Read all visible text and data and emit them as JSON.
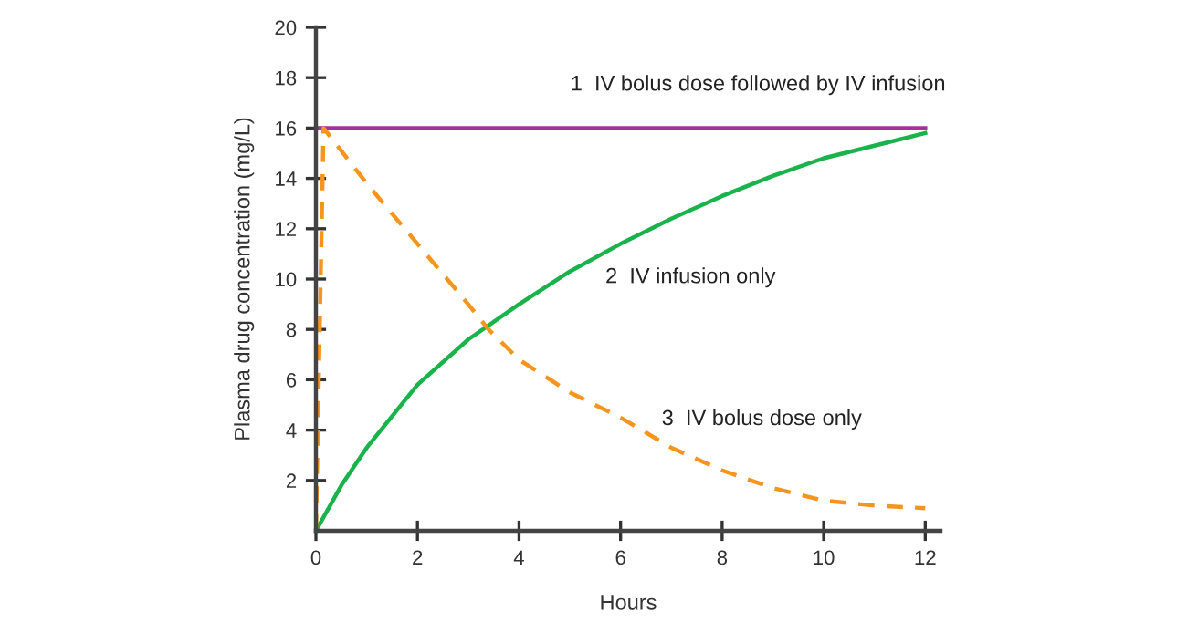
{
  "chart_data": {
    "type": "line",
    "xlabel": "Hours",
    "ylabel": "Plasma drug concentration (mg/L)",
    "xlim": [
      0,
      12.3
    ],
    "ylim": [
      0,
      20
    ],
    "xticks": [
      0,
      2,
      4,
      6,
      8,
      10,
      12
    ],
    "yticks": [
      2,
      4,
      6,
      8,
      10,
      12,
      14,
      16,
      18,
      20
    ],
    "grid": false,
    "legend": false,
    "marker": "none",
    "series": [
      {
        "name": "1  IV bolus dose followed by IV infusion",
        "color": "#a3319f",
        "line_style": "solid",
        "x": [
          0,
          12
        ],
        "values": [
          16,
          16
        ]
      },
      {
        "name": "2  IV infusion only",
        "color": "#1ab24b",
        "line_style": "solid",
        "x": [
          0,
          0.5,
          1,
          2,
          3,
          4,
          5,
          6,
          7,
          8,
          9,
          10,
          11,
          12
        ],
        "values": [
          0,
          1.8,
          3.3,
          5.8,
          7.6,
          9.0,
          10.3,
          11.4,
          12.4,
          13.3,
          14.1,
          14.8,
          15.3,
          15.8
        ]
      },
      {
        "name": "3  IV bolus dose only",
        "color": "#f7941d",
        "line_style": "dashed",
        "x": [
          0,
          0.15,
          1,
          2,
          3,
          3.4,
          4,
          5,
          6,
          7,
          8,
          9,
          10,
          11,
          12
        ],
        "values": [
          0,
          16,
          13.8,
          11.4,
          9.0,
          8.0,
          6.8,
          5.5,
          4.5,
          3.3,
          2.4,
          1.7,
          1.2,
          1.0,
          0.9
        ]
      }
    ]
  }
}
